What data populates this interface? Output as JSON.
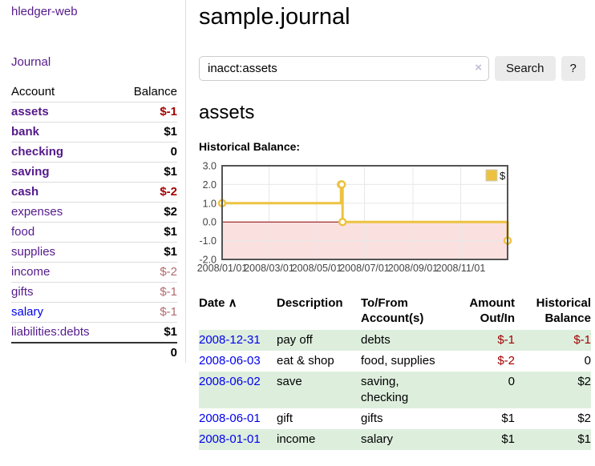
{
  "app": {
    "brand": "hledger-web"
  },
  "sidebar": {
    "nav_journal": "Journal",
    "accounts": {
      "col_account": "Account",
      "col_balance": "Balance",
      "rows": [
        {
          "name": "assets",
          "balance": "$-1",
          "indent": 1,
          "matched": true,
          "balance_style": "neg-strong",
          "unvisited": false
        },
        {
          "name": "bank",
          "balance": "$1",
          "indent": 2,
          "matched": true,
          "balance_style": "pos",
          "unvisited": false
        },
        {
          "name": "checking",
          "balance": "0",
          "indent": 3,
          "matched": true,
          "balance_style": "pos",
          "unvisited": false
        },
        {
          "name": "saving",
          "balance": "$1",
          "indent": 3,
          "matched": true,
          "balance_style": "pos",
          "unvisited": false
        },
        {
          "name": "cash",
          "balance": "$-2",
          "indent": 2,
          "matched": true,
          "balance_style": "neg-strong",
          "unvisited": false
        },
        {
          "name": "expenses",
          "balance": "$2",
          "indent": 1,
          "matched": false,
          "balance_style": "pos",
          "unvisited": false
        },
        {
          "name": "food",
          "balance": "$1",
          "indent": 2,
          "matched": false,
          "balance_style": "pos",
          "unvisited": false
        },
        {
          "name": "supplies",
          "balance": "$1",
          "indent": 2,
          "matched": false,
          "balance_style": "pos",
          "unvisited": false
        },
        {
          "name": "income",
          "balance": "$-2",
          "indent": 1,
          "matched": false,
          "balance_style": "neg-faded",
          "unvisited": false
        },
        {
          "name": "gifts",
          "balance": "$-1",
          "indent": 2,
          "matched": false,
          "balance_style": "neg-faded",
          "unvisited": false
        },
        {
          "name": "salary",
          "balance": "$-1",
          "indent": 2,
          "matched": false,
          "balance_style": "neg-faded",
          "unvisited": true
        },
        {
          "name": "liabilities:debts",
          "balance": "$1",
          "indent": 1,
          "matched": false,
          "balance_style": "pos",
          "unvisited": false
        }
      ],
      "total": "0"
    }
  },
  "main": {
    "title": "sample.journal",
    "search": {
      "value": "inacct:assets",
      "clear": "×",
      "submit": "Search",
      "help": "?"
    },
    "heading": "assets",
    "chart_label": "Historical Balance:"
  },
  "chart_data": {
    "type": "line",
    "step": true,
    "title": "Historical Balance",
    "series": [
      {
        "name": "$",
        "color": "#edc240",
        "x": [
          "2008/01/01",
          "2008/06/01",
          "2008/06/02",
          "2008/06/03",
          "2008/12/31"
        ],
        "y": [
          1,
          2,
          2,
          0,
          -1
        ]
      }
    ],
    "xlim": [
      "2008/01/01",
      "2008/12/31"
    ],
    "ylim": [
      -2,
      3
    ],
    "x_ticks": [
      "2008/01/01",
      "2008/03/01",
      "2008/05/01",
      "2008/07/01",
      "2008/09/01",
      "2008/11/01"
    ],
    "y_ticks": [
      "3.0",
      "2.0",
      "1.0",
      "0.0",
      "-1.0",
      "-2.0"
    ],
    "legend": {
      "label": "$",
      "position": "top-right"
    },
    "grid": true,
    "negative_region_color": "#fbe0e0",
    "zero_line_color": "#8b0000"
  },
  "register": {
    "sort_icon": "∧",
    "headers": [
      "Date",
      "Description",
      "To/From Account(s)",
      "Amount Out/In",
      "Historical Balance"
    ],
    "rows": [
      {
        "date": "2008-12-31",
        "description": "pay off",
        "accounts": "debts",
        "amount": "$-1",
        "amount_neg": true,
        "balance": "$-1",
        "balance_neg": true
      },
      {
        "date": "2008-06-03",
        "description": "eat & shop",
        "accounts": "food, supplies",
        "amount": "$-2",
        "amount_neg": true,
        "balance": "0",
        "balance_neg": false
      },
      {
        "date": "2008-06-02",
        "description": "save",
        "accounts": "saving, checking",
        "amount": "0",
        "amount_neg": false,
        "balance": "$2",
        "balance_neg": false
      },
      {
        "date": "2008-06-01",
        "description": "gift",
        "accounts": "gifts",
        "amount": "$1",
        "amount_neg": false,
        "balance": "$2",
        "balance_neg": false
      },
      {
        "date": "2008-01-01",
        "description": "income",
        "accounts": "salary",
        "amount": "$1",
        "amount_neg": false,
        "balance": "$1",
        "balance_neg": false
      }
    ]
  },
  "colors": {
    "link_visited_purple": "#551a8b",
    "link_blue": "#0000ee",
    "negative_strong": "#a40000",
    "negative_faded": "#b36a6e",
    "row_stripe_green": "#ddeedd",
    "series_yellow": "#edc240",
    "negative_region_pink": "#fbe0e0",
    "zero_line_dark_red": "#8b0000",
    "button_gray": "#ebebeb"
  }
}
